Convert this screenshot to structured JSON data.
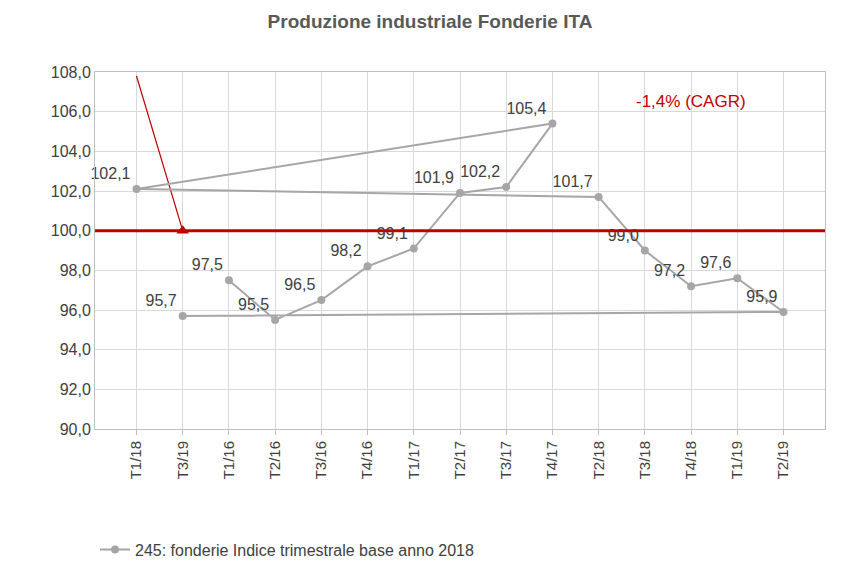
{
  "chart_data": {
    "type": "line",
    "title": "Produzione industriale Fonderie ITA",
    "categories": [
      "T1/16",
      "T2/16",
      "T3/16",
      "T4/16",
      "T1/17",
      "T2/17",
      "T3/17",
      "T4/17",
      "T1/18",
      "T2/18",
      "T3/18",
      "T4/18",
      "T1/19",
      "T2/19",
      "T3/19"
    ],
    "series": [
      {
        "name": "245: fonderie Indice trimestrale base anno 2018",
        "color": "#a6a6a6",
        "marker": "circle",
        "values": [
          97.5,
          95.5,
          96.5,
          98.2,
          99.1,
          101.9,
          102.2,
          105.4,
          102.1,
          101.7,
          99.0,
          97.2,
          97.6,
          95.9,
          95.7
        ],
        "value_labels": [
          "97,5",
          "95,5",
          "96,5",
          "98,2",
          "99,1",
          "101,9",
          "102,2",
          "105,4",
          "102,1",
          "101,7",
          "99,0",
          "97,2",
          "97,6",
          "95,9",
          "95,7"
        ]
      }
    ],
    "ylim": [
      90,
      108
    ],
    "yticks": [
      {
        "value": 90,
        "label": "90,0"
      },
      {
        "value": 92,
        "label": "92,0"
      },
      {
        "value": 94,
        "label": "94,0"
      },
      {
        "value": 96,
        "label": "96,0"
      },
      {
        "value": 98,
        "label": "98,0"
      },
      {
        "value": 100,
        "label": "100,0"
      },
      {
        "value": 102,
        "label": "102,0"
      },
      {
        "value": 104,
        "label": "104,0"
      },
      {
        "value": 106,
        "label": "106,0"
      },
      {
        "value": 108,
        "label": "108,0"
      }
    ],
    "grid": true,
    "legend": "bottom",
    "data_labels": true,
    "reference_line": {
      "y": 100,
      "color": "#c00000"
    },
    "trend": {
      "from": {
        "x": "T1/18",
        "y": 107.8
      },
      "to": {
        "x": "T3/19",
        "y": 100
      },
      "color": "#c00000",
      "marker": "triangle-up"
    },
    "annotations": [
      {
        "text": "-1,4% (CAGR)",
        "x": "T4/18",
        "y": 106.5,
        "color": "#c00000"
      }
    ]
  }
}
